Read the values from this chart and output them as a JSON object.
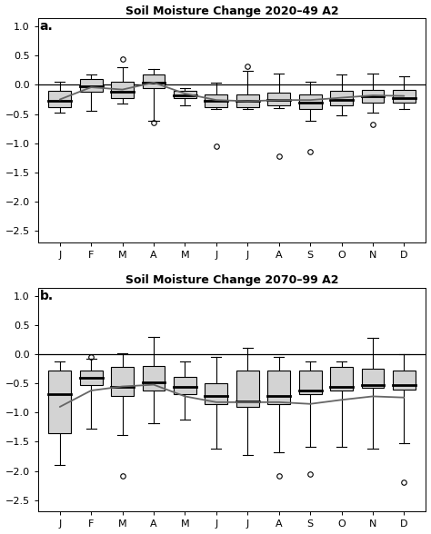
{
  "title_a": "Soil Moisture Change 2020–49 A2",
  "title_b": "Soil Moisture Change 2070–99 A2",
  "label_a": "a.",
  "label_b": "b.",
  "months": [
    "J",
    "F",
    "M",
    "A",
    "M",
    "J",
    "J",
    "A",
    "S",
    "O",
    "N",
    "D"
  ],
  "ylim": [
    -2.7,
    1.15
  ],
  "yticks": [
    -2.5,
    -2.0,
    -1.5,
    -1.0,
    -0.5,
    0.0,
    0.5,
    1.0
  ],
  "ytick_labels": [
    "−2.5",
    "−2.0",
    "−1.5",
    "−1.0",
    "−0.5",
    "0.0",
    "0.5",
    "1.0"
  ],
  "panel_a": {
    "q1": [
      -0.38,
      -0.12,
      -0.22,
      -0.05,
      -0.22,
      -0.38,
      -0.38,
      -0.35,
      -0.42,
      -0.35,
      -0.3,
      -0.3
    ],
    "median": [
      -0.28,
      -0.02,
      -0.12,
      0.04,
      -0.18,
      -0.28,
      -0.28,
      -0.25,
      -0.3,
      -0.25,
      -0.2,
      -0.22
    ],
    "q3": [
      -0.1,
      0.1,
      0.05,
      0.18,
      -0.1,
      -0.16,
      -0.16,
      -0.14,
      -0.16,
      -0.1,
      -0.08,
      -0.08
    ],
    "whisker_low": [
      -0.48,
      -0.45,
      -0.32,
      -0.62,
      -0.35,
      -0.42,
      -0.42,
      -0.4,
      -0.62,
      -0.52,
      -0.47,
      -0.42
    ],
    "whisker_high": [
      0.06,
      0.18,
      0.3,
      0.28,
      -0.05,
      0.04,
      0.24,
      0.2,
      0.05,
      0.18,
      0.2,
      0.14
    ],
    "outliers_x": [
      3,
      4,
      6,
      7,
      8,
      9,
      11
    ],
    "outliers_y": [
      0.45,
      -0.65,
      -1.05,
      0.32,
      -1.22,
      -1.15,
      -0.68
    ],
    "mean_line": [
      -0.25,
      -0.04,
      -0.08,
      0.04,
      -0.15,
      -0.26,
      -0.28,
      -0.26,
      -0.26,
      -0.22,
      -0.18,
      -0.19
    ]
  },
  "panel_b": {
    "q1": [
      -1.35,
      -0.52,
      -0.72,
      -0.62,
      -0.68,
      -0.85,
      -0.9,
      -0.85,
      -0.68,
      -0.62,
      -0.58,
      -0.6
    ],
    "median": [
      -0.68,
      -0.4,
      -0.55,
      -0.48,
      -0.55,
      -0.72,
      -0.8,
      -0.72,
      -0.62,
      -0.55,
      -0.52,
      -0.52
    ],
    "q3": [
      -0.28,
      -0.28,
      -0.22,
      -0.2,
      -0.38,
      -0.5,
      -0.28,
      -0.28,
      -0.28,
      -0.22,
      -0.25,
      -0.28
    ],
    "whisker_low": [
      -1.9,
      -1.28,
      -1.38,
      -1.18,
      -1.12,
      -1.62,
      -1.72,
      -1.68,
      -1.58,
      -1.58,
      -1.62,
      -1.52
    ],
    "whisker_high": [
      -0.12,
      -0.08,
      0.02,
      0.3,
      -0.12,
      -0.05,
      0.12,
      -0.05,
      -0.12,
      -0.12,
      0.28,
      0.0
    ],
    "outliers_x": [
      2,
      3,
      8,
      9,
      12
    ],
    "outliers_y": [
      -0.05,
      -2.08,
      -2.08,
      -2.05,
      -2.2
    ],
    "mean_line": [
      -0.9,
      -0.62,
      -0.55,
      -0.52,
      -0.72,
      -0.82,
      -0.82,
      -0.82,
      -0.85,
      -0.78,
      -0.72,
      -0.74
    ]
  },
  "box_color": "#d3d3d3",
  "box_edge_color": "#000000",
  "median_color": "#000000",
  "whisker_color": "#000000",
  "mean_line_color": "#666666",
  "hline_color": "#000000",
  "background_color": "#ffffff",
  "box_width": 0.72,
  "title_fontsize": 9,
  "tick_fontsize": 8,
  "label_fontsize": 10
}
